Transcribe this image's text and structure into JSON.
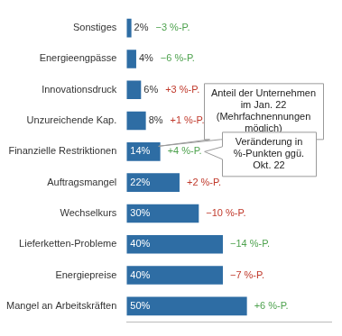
{
  "chart_data": {
    "type": "bar",
    "orientation": "horizontal",
    "categories": [
      "Sonstiges",
      "Energieengpässe",
      "Innovationsdruck",
      "Unzureichende Kap.",
      "Finanzielle Restriktionen",
      "Auftragsmangel",
      "Wechselkurs",
      "Lieferketten-Probleme",
      "Energiepreise",
      "Mangel an Arbeitskräften"
    ],
    "values": [
      2,
      4,
      6,
      8,
      14,
      22,
      30,
      40,
      40,
      50
    ],
    "value_labels": [
      "2%",
      "4%",
      "6%",
      "8%",
      "14%",
      "22%",
      "30%",
      "40%",
      "40%",
      "50%"
    ],
    "color": "#2e6da4",
    "data_labels": true,
    "changes": [
      -3,
      -6,
      3,
      1,
      4,
      2,
      -10,
      -14,
      -7,
      6
    ],
    "change_labels": [
      "−3 %-P.",
      "−6 %-P.",
      "+3 %-P.",
      "+1 %-P.",
      "+4 %-P.",
      "+2 %-P.",
      "−10 %-P.",
      "−14 %-P.",
      "−7 %-P.",
      "+6 %-P."
    ],
    "change_colors": [
      "#4ea24e",
      "#4ea24e",
      "#c0392b",
      "#c0392b",
      "#4ea24e",
      "#c0392b",
      "#c0392b",
      "#4ea24e",
      "#c0392b",
      "#4ea24e"
    ],
    "annotations": [
      "Anteil der Unternehmen im Jan. 22 (Mehrfachnennungen möglich)",
      "Veränderung in %-Punkten ggü. Okt. 22"
    ],
    "xlim": [
      0,
      85
    ],
    "grid": false,
    "tick_labels": "y"
  }
}
